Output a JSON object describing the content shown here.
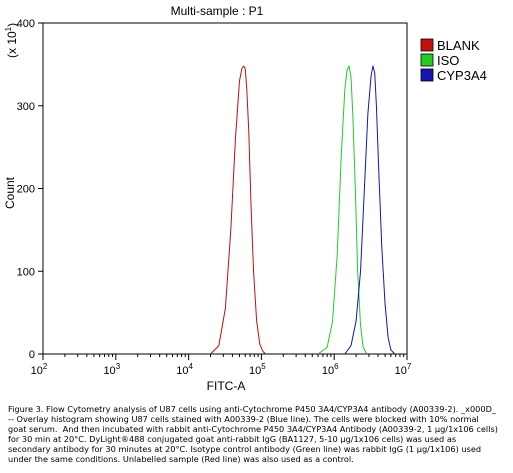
{
  "chart_data": {
    "type": "line",
    "title": "Multi-sample : P1",
    "xlabel": "FITC-A",
    "ylabel": "Count",
    "y_multiplier_label": "(x 10",
    "y_multiplier_exp": "1",
    "x_scale": "log",
    "xlim": [
      100,
      10000000
    ],
    "ylim": [
      0,
      400
    ],
    "x_ticks": [
      {
        "base": "10",
        "exp": "2"
      },
      {
        "base": "10",
        "exp": "3"
      },
      {
        "base": "10",
        "exp": "4"
      },
      {
        "base": "10",
        "exp": "5"
      },
      {
        "base": "10",
        "exp": "6"
      },
      {
        "base": "10",
        "exp": "7"
      }
    ],
    "y_ticks": [
      "0",
      "100",
      "200",
      "300",
      "400"
    ],
    "y_tick_values": [
      0,
      100,
      200,
      300,
      400
    ],
    "legend_position": "top-right",
    "grid": false,
    "series": [
      {
        "name": "BLANK",
        "color": "#c01010",
        "x": [
          20000,
          26000,
          32000,
          38000,
          44000,
          50000,
          54000,
          57000,
          60000,
          63000,
          67000,
          72000,
          78000,
          86000,
          95000,
          105000,
          115000
        ],
        "y": [
          0,
          10,
          55,
          150,
          260,
          330,
          345,
          348,
          345,
          320,
          270,
          180,
          100,
          40,
          12,
          3,
          0
        ]
      },
      {
        "name": "ISO",
        "color": "#22cc22",
        "x": [
          600000,
          800000,
          950000,
          1100000,
          1250000,
          1400000,
          1500000,
          1600000,
          1700000,
          1800000,
          1950000,
          2100000,
          2300000,
          2500000,
          2800000
        ],
        "y": [
          0,
          8,
          40,
          120,
          240,
          320,
          343,
          348,
          335,
          290,
          200,
          100,
          35,
          8,
          0
        ]
      },
      {
        "name": "CYP3A4",
        "color": "#1515b5",
        "x": [
          1400000,
          1700000,
          2000000,
          2300000,
          2600000,
          2900000,
          3200000,
          3400000,
          3600000,
          3800000,
          4100000,
          4500000,
          5000000,
          5500000,
          6000000,
          6800000
        ],
        "y": [
          0,
          10,
          40,
          100,
          200,
          290,
          335,
          348,
          340,
          300,
          220,
          130,
          60,
          20,
          5,
          0
        ]
      }
    ]
  },
  "caption_text": "Figure 3. Flow Cytometry analysis of U87 cells using anti-Cytochrome P450 3A4/CYP3A4 antibody (A00339-2). _x000D_\n-- Overlay histogram showing U87 cells stained with A00339-2 (Blue line). The cells were blocked with 10% normal\ngoat serum.  And then incubated with rabbit anti-Cytochrome P450 3A4/CYP3A4 Antibody (A00339-2, 1 μg/1x106 cells)\nfor 30 min at 20°C. DyLight®488 conjugated goat anti-rabbit IgG (BA1127, 5-10 μg/1x106 cells) was used as\nsecondary antibody for 30 minutes at 20°C. Isotype control antibody (Green line) was rabbit IgG (1 μg/1x106) used\nunder the same conditions. Unlabelled sample (Red line) was also used as a control."
}
